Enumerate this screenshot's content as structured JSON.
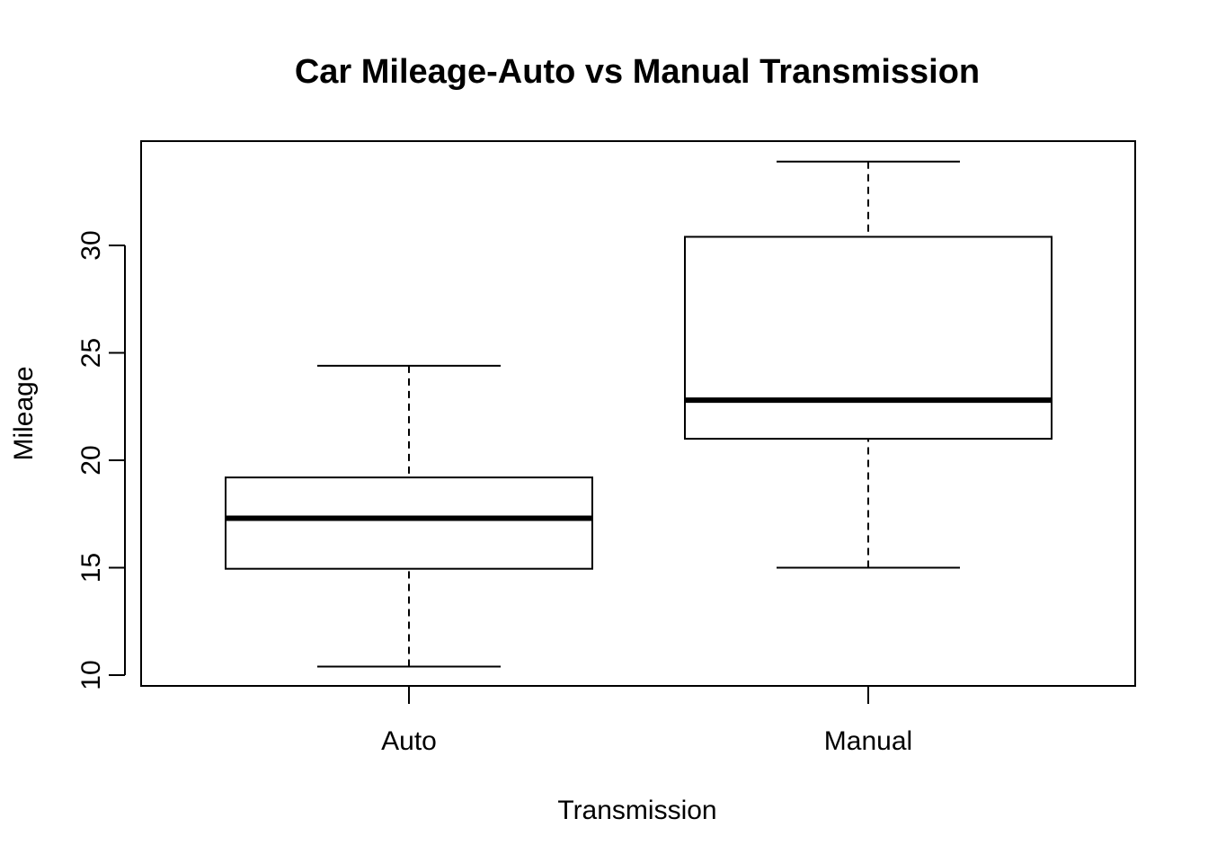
{
  "chart_data": {
    "type": "boxplot",
    "title": "Car Mileage-Auto vs Manual Transmission",
    "xlabel": "Transmission",
    "ylabel": "Mileage",
    "categories": [
      "Auto",
      "Manual"
    ],
    "boxes": [
      {
        "category": "Auto",
        "whisker_low": 10.4,
        "q1": 14.95,
        "median": 17.3,
        "q3": 19.2,
        "whisker_high": 24.4
      },
      {
        "category": "Manual",
        "whisker_low": 15.0,
        "q1": 21.0,
        "median": 22.8,
        "q3": 30.4,
        "whisker_high": 33.9
      }
    ],
    "y_ticks": [
      10,
      15,
      20,
      25,
      30
    ],
    "ylim": [
      9.5,
      34.8
    ],
    "grid": false,
    "legend": "none"
  }
}
